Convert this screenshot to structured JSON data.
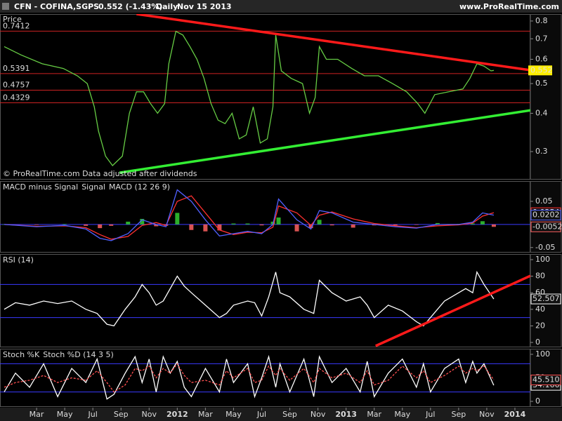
{
  "header": {
    "symbol": "CFN - COFINA,SGPS",
    "quote": "0.552 (-1.43%)",
    "period": "Daily",
    "date": "Nov 15 2013",
    "site": "www.ProRealTime.com"
  },
  "chart_data": [
    {
      "type": "line",
      "title": "Price",
      "note": "© ProRealTime.com  Data adjusted after dividends",
      "log_scale": true,
      "xlim": [
        -0.6,
        37.1
      ],
      "ylim": [
        0.243,
        0.843
      ],
      "yticks": [
        0.3,
        0.4,
        0.5,
        0.6,
        0.7,
        0.8
      ],
      "levels": [
        0.7412,
        0.5391,
        0.4757,
        0.4329
      ],
      "level_color": "#cc2222",
      "trendlines": [
        {
          "color": "#ff1a1a",
          "x": [
            9.1,
            37.1
          ],
          "values": [
            0.843,
            0.553
          ]
        },
        {
          "color": "#33ee33",
          "x": [
            7.9,
            37.1
          ],
          "values": [
            0.256,
            0.409
          ]
        }
      ],
      "series": [
        {
          "name": "Price",
          "color": "#66cc44",
          "style": "line",
          "x": [
            -0.3,
            0.9,
            2.4,
            3.9,
            4.9,
            5.6,
            6.1,
            6.4,
            6.9,
            7.4,
            8.1,
            8.6,
            9.1,
            9.6,
            10.1,
            10.6,
            11.1,
            11.4,
            11.9,
            12.4,
            12.9,
            13.4,
            13.9,
            14.4,
            14.9,
            15.4,
            15.9,
            16.4,
            16.9,
            17.4,
            17.9,
            18.4,
            18.8,
            19.0,
            19.4,
            20.1,
            20.9,
            21.4,
            21.8,
            22.1,
            22.6,
            23.4,
            24.4,
            25.3,
            26.3,
            27.3,
            28.3,
            29.1,
            29.6,
            30.3,
            31.3,
            32.3,
            32.8,
            33.3,
            33.8,
            34.3,
            34.5
          ],
          "values": [
            0.66,
            0.62,
            0.58,
            0.56,
            0.53,
            0.5,
            0.42,
            0.35,
            0.29,
            0.27,
            0.29,
            0.4,
            0.47,
            0.47,
            0.43,
            0.4,
            0.43,
            0.58,
            0.74,
            0.72,
            0.66,
            0.6,
            0.52,
            0.43,
            0.38,
            0.37,
            0.4,
            0.33,
            0.34,
            0.42,
            0.32,
            0.33,
            0.42,
            0.72,
            0.55,
            0.52,
            0.5,
            0.4,
            0.45,
            0.66,
            0.6,
            0.6,
            0.56,
            0.53,
            0.53,
            0.5,
            0.47,
            0.43,
            0.4,
            0.46,
            0.47,
            0.48,
            0.52,
            0.58,
            0.57,
            0.55,
            0.552
          ]
        }
      ]
    },
    {
      "type": "line",
      "xlim": [
        -0.6,
        37.1
      ],
      "ylim": [
        -0.061,
        0.094
      ],
      "yticks": [
        0.05,
        -0.05
      ],
      "bands": [
        0
      ],
      "series": [
        {
          "name": "MACD minus Signal",
          "color": "#33cc33",
          "negative_color": "#ff6060",
          "style": "bar",
          "x": [
            -0.3,
            2,
            4,
            5.5,
            6.5,
            7.3,
            8.5,
            9.5,
            10.5,
            11.2,
            12,
            13,
            14,
            15,
            16,
            17,
            18,
            18.8,
            19.2,
            20.5,
            21.5,
            22.1,
            23,
            24.5,
            26,
            27.5,
            29,
            30.5,
            32,
            33,
            33.7,
            34.5
          ],
          "values": [
            0,
            -0.001,
            0.001,
            -0.003,
            -0.008,
            -0.003,
            0.006,
            0.012,
            -0.004,
            -0.003,
            0.025,
            -0.012,
            -0.015,
            -0.013,
            0.002,
            0.002,
            -0.002,
            0.006,
            0.015,
            -0.015,
            -0.008,
            0.01,
            -0.002,
            -0.007,
            -0.002,
            -0.002,
            -0.001,
            0.003,
            0.001,
            0.002,
            0.007,
            -0.0052
          ]
        },
        {
          "name": "Signal",
          "color": "#ff3030",
          "style": "line",
          "x": [
            -0.3,
            2,
            4,
            5.5,
            6.5,
            7.3,
            8.5,
            9.5,
            10.5,
            11.2,
            12,
            13,
            14,
            15,
            16,
            17,
            18,
            18.8,
            19.2,
            20.5,
            21.5,
            22.1,
            23,
            24.5,
            26,
            27.5,
            29,
            30.5,
            32,
            33,
            33.7,
            34.5
          ],
          "values": [
            0,
            -0.004,
            -0.003,
            -0.007,
            -0.022,
            -0.032,
            -0.026,
            -0.002,
            0.004,
            -0.002,
            0.05,
            0.062,
            0.025,
            -0.012,
            -0.022,
            -0.017,
            -0.018,
            -0.006,
            0.04,
            0.025,
            -0.002,
            0.02,
            0.027,
            0.012,
            0.002,
            -0.003,
            -0.007,
            -0.003,
            -0.001,
            0.003,
            0.018,
            0.0254
          ]
        },
        {
          "name": "MACD (12 26 9)",
          "color": "#5060ff",
          "style": "line",
          "x": [
            -0.3,
            2,
            4,
            5.5,
            6.5,
            7.3,
            8.5,
            9.5,
            10.5,
            11.2,
            12,
            13,
            14,
            15,
            16,
            17,
            18,
            18.8,
            19.2,
            20.5,
            21.5,
            22.1,
            23,
            24.5,
            26,
            27.5,
            29,
            30.5,
            32,
            33,
            33.7,
            34.5
          ],
          "values": [
            0,
            -0.005,
            -0.002,
            -0.01,
            -0.03,
            -0.035,
            -0.02,
            0.01,
            0,
            -0.005,
            0.075,
            0.05,
            0.01,
            -0.025,
            -0.02,
            -0.015,
            -0.02,
            0,
            0.055,
            0.01,
            -0.01,
            0.03,
            0.025,
            0.005,
            0,
            -0.005,
            -0.008,
            0,
            0,
            0.005,
            0.025,
            0.0202
          ]
        }
      ]
    },
    {
      "type": "line",
      "xlim": [
        -0.6,
        37.1
      ],
      "ylim": [
        -5.9,
        106.8
      ],
      "yticks": [
        0,
        20,
        40,
        60,
        80,
        100
      ],
      "bands": [
        70,
        30
      ],
      "trendlines": [
        {
          "color": "#ff1a1a",
          "x": [
            26.1,
            37.1
          ],
          "values": [
            -4.2,
            80.5
          ]
        }
      ],
      "series": [
        {
          "name": "RSI (14)",
          "color": "#ffffff",
          "style": "line",
          "x": [
            -0.3,
            0.5,
            1.5,
            2.5,
            3.5,
            4.5,
            5.5,
            6.3,
            7,
            7.5,
            8.3,
            9,
            9.5,
            10,
            10.5,
            11,
            11.5,
            12,
            12.5,
            13,
            14,
            15,
            15.5,
            16,
            17,
            17.5,
            18,
            18.5,
            19,
            19.3,
            20,
            21,
            21.7,
            22.1,
            23,
            24,
            25,
            25.5,
            26,
            27,
            28,
            29,
            29.5,
            30,
            31,
            32,
            32.5,
            33,
            33.3,
            33.8,
            34.5
          ],
          "values": [
            40,
            48,
            45,
            50,
            47,
            50,
            40,
            35,
            22,
            20,
            40,
            55,
            70,
            60,
            45,
            50,
            65,
            80,
            68,
            60,
            45,
            30,
            35,
            45,
            50,
            48,
            32,
            55,
            85,
            60,
            55,
            40,
            35,
            75,
            60,
            50,
            55,
            45,
            30,
            45,
            38,
            25,
            20,
            30,
            50,
            60,
            65,
            60,
            85,
            70,
            52.507
          ]
        }
      ]
    },
    {
      "type": "line",
      "xlim": [
        -0.6,
        37.1
      ],
      "ylim": [
        -11.9,
        111.9
      ],
      "yticks": [
        0,
        50,
        100
      ],
      "bands": [
        80,
        20
      ],
      "xticks": [
        {
          "value": 2,
          "label": "Mar"
        },
        {
          "value": 4,
          "label": "May"
        },
        {
          "value": 6,
          "label": "Jul"
        },
        {
          "value": 8,
          "label": "Sep"
        },
        {
          "value": 10,
          "label": "Nov"
        },
        {
          "value": 12,
          "label": "2012"
        },
        {
          "value": 14,
          "label": "Mar"
        },
        {
          "value": 16,
          "label": "May"
        },
        {
          "value": 18,
          "label": "Jul"
        },
        {
          "value": 20,
          "label": "Sep"
        },
        {
          "value": 22,
          "label": "Nov"
        },
        {
          "value": 24,
          "label": "2013"
        },
        {
          "value": 26,
          "label": "Mar"
        },
        {
          "value": 28,
          "label": "May"
        },
        {
          "value": 30,
          "label": "Jul"
        },
        {
          "value": 32,
          "label": "Sep"
        },
        {
          "value": 34,
          "label": "Nov"
        },
        {
          "value": 36,
          "label": "2014"
        }
      ],
      "series": [
        {
          "name": "Stoch %K",
          "color": "#ffffff",
          "style": "line",
          "x": [
            -0.3,
            0.5,
            1.5,
            2.5,
            3.5,
            4.5,
            5.5,
            6.3,
            7,
            7.5,
            8.3,
            9,
            9.5,
            10,
            10.5,
            11,
            11.5,
            12,
            12.5,
            13,
            14,
            15,
            15.5,
            16,
            17,
            17.5,
            18,
            18.5,
            19,
            19.3,
            20,
            21,
            21.7,
            22.1,
            23,
            24,
            25,
            25.5,
            26,
            27,
            28,
            29,
            29.5,
            30,
            31,
            32,
            32.5,
            33,
            33.3,
            33.8,
            34.5
          ],
          "values": [
            20,
            60,
            30,
            80,
            10,
            70,
            40,
            90,
            5,
            15,
            60,
            95,
            40,
            90,
            20,
            95,
            60,
            85,
            30,
            10,
            70,
            20,
            90,
            40,
            80,
            10,
            50,
            95,
            30,
            80,
            20,
            90,
            10,
            95,
            40,
            70,
            20,
            85,
            10,
            60,
            90,
            30,
            80,
            20,
            70,
            90,
            40,
            85,
            60,
            80,
            34.166
          ]
        },
        {
          "name": "Stoch %D (14 3 5)",
          "color": "#ff5050",
          "style": "dashed",
          "x": [
            -0.3,
            0.5,
            1.5,
            2.5,
            3.5,
            4.5,
            5.5,
            6.3,
            7,
            7.5,
            8.3,
            9,
            9.5,
            10,
            10.5,
            11,
            11.5,
            12,
            12.5,
            13,
            14,
            15,
            15.5,
            16,
            17,
            17.5,
            18,
            18.5,
            19,
            19.3,
            20,
            21,
            21.7,
            22.1,
            23,
            24,
            25,
            25.5,
            26,
            27,
            28,
            29,
            29.5,
            30,
            31,
            32,
            32.5,
            33,
            33.3,
            33.8,
            34.5
          ],
          "values": [
            30,
            40,
            45,
            55,
            40,
            50,
            45,
            65,
            40,
            20,
            35,
            70,
            65,
            75,
            50,
            70,
            60,
            80,
            55,
            40,
            45,
            35,
            65,
            50,
            70,
            40,
            45,
            75,
            55,
            70,
            45,
            70,
            40,
            70,
            50,
            60,
            40,
            65,
            35,
            45,
            75,
            50,
            65,
            40,
            55,
            75,
            60,
            70,
            65,
            75,
            45.51
          ],
          "value_labels": [
            null,
            null,
            null,
            null,
            null,
            null,
            null,
            null,
            null,
            null,
            null,
            null,
            null,
            null,
            null,
            null,
            null,
            null,
            null,
            null,
            null,
            null,
            null,
            null,
            null,
            null,
            null,
            null,
            null,
            null,
            null,
            null,
            null,
            null,
            null,
            null,
            null,
            null,
            null,
            null,
            null,
            null,
            null,
            null,
            null,
            null,
            null,
            null,
            null,
            null,
            "45.510"
          ]
        }
      ]
    }
  ]
}
